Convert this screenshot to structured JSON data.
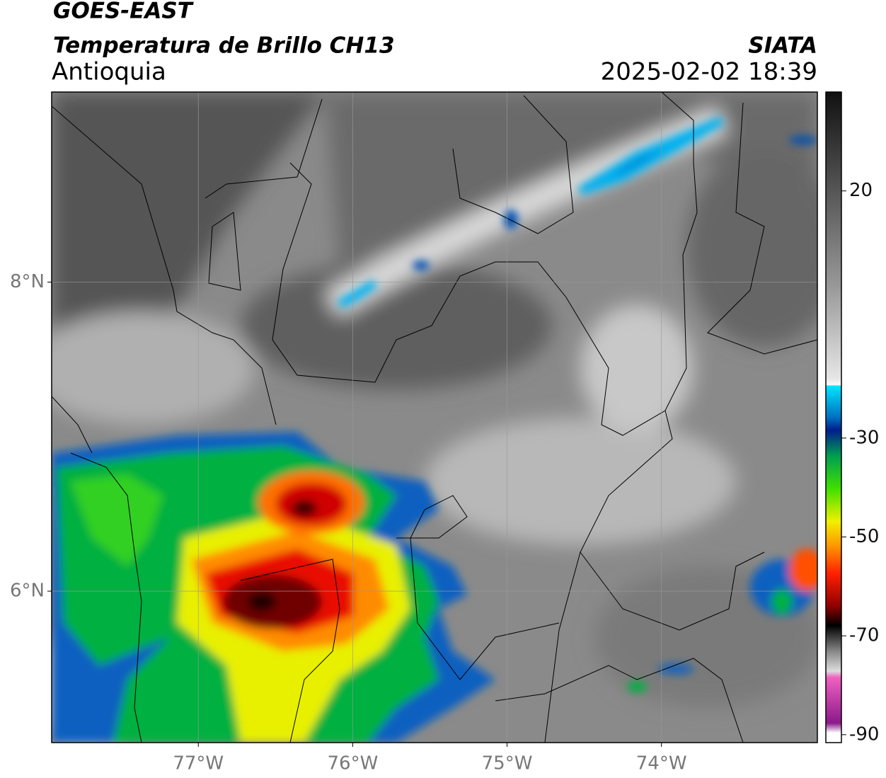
{
  "header": {
    "title": "GOES-EAST",
    "subtitle": "Temperatura de Brillo CH13",
    "region": "Antioquia",
    "source": "SIATA",
    "datetime": "2025-02-02 18:39"
  },
  "map": {
    "xlim": [
      -77.95,
      -72.99
    ],
    "ylim": [
      5.02,
      9.23
    ],
    "xticks": [
      {
        "value": -77,
        "label": "77°W"
      },
      {
        "value": -76,
        "label": "76°W"
      },
      {
        "value": -75,
        "label": "75°W"
      },
      {
        "value": -74,
        "label": "74°W"
      }
    ],
    "yticks": [
      {
        "value": 8,
        "label": "8°N"
      },
      {
        "value": 6,
        "label": "6°N"
      }
    ]
  },
  "colorbar": {
    "lim": [
      -91.6,
      40
    ],
    "ticks": [
      20,
      -30,
      -50,
      -70,
      -90
    ]
  }
}
